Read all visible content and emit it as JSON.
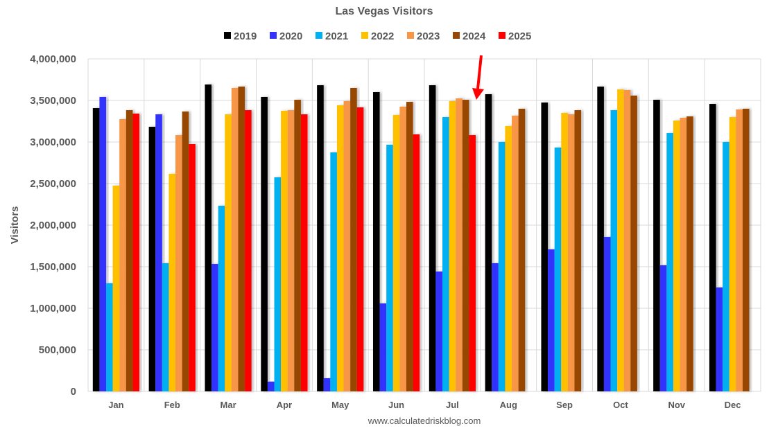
{
  "chart_data": {
    "type": "bar",
    "title": "Las Vegas Visitors",
    "xlabel": "",
    "ylabel": "Visitors",
    "footer": "www.calculatedriskblog.com",
    "ylim": [
      0,
      4000000
    ],
    "yticks": [
      0,
      500000,
      1000000,
      1500000,
      2000000,
      2500000,
      3000000,
      3500000,
      4000000
    ],
    "ytick_labels": [
      "0",
      "500,000",
      "1,000,000",
      "1,500,000",
      "2,000,000",
      "2,500,000",
      "3,000,000",
      "3,500,000",
      "4,000,000"
    ],
    "grid": true,
    "legend_position": "top",
    "categories": [
      "Jan",
      "Feb",
      "Mar",
      "Apr",
      "May",
      "Jun",
      "Jul",
      "Aug",
      "Sep",
      "Oct",
      "Nov",
      "Dec"
    ],
    "series": [
      {
        "name": "2019",
        "color": "#000000",
        "values": [
          3408000,
          3183000,
          3692000,
          3542000,
          3683000,
          3600000,
          3683000,
          3575000,
          3475000,
          3667000,
          3508000,
          3458000
        ]
      },
      {
        "name": "2020",
        "color": "#3333FF",
        "values": [
          3542000,
          3333000,
          1533000,
          117000,
          158000,
          1058000,
          1442000,
          1542000,
          1708000,
          1858000,
          1517000,
          1250000
        ]
      },
      {
        "name": "2021",
        "color": "#00B0F0",
        "values": [
          1300000,
          1542000,
          2233000,
          2575000,
          2875000,
          2967000,
          3300000,
          3000000,
          2933000,
          3383000,
          3108000,
          3000000
        ]
      },
      {
        "name": "2022",
        "color": "#FFC000",
        "values": [
          2475000,
          2617000,
          3333000,
          3375000,
          3442000,
          3325000,
          3492000,
          3192000,
          3350000,
          3633000,
          3258000,
          3300000
        ]
      },
      {
        "name": "2023",
        "color": "#F79646",
        "values": [
          3275000,
          3083000,
          3650000,
          3383000,
          3492000,
          3425000,
          3525000,
          3317000,
          3333000,
          3625000,
          3292000,
          3392000
        ]
      },
      {
        "name": "2024",
        "color": "#974706",
        "values": [
          3383000,
          3367000,
          3667000,
          3508000,
          3650000,
          3483000,
          3508000,
          3400000,
          3383000,
          3558000,
          3308000,
          3400000
        ]
      },
      {
        "name": "2025",
        "color": "#FF0000",
        "values": [
          3342000,
          2975000,
          3383000,
          3333000,
          3417000,
          3092000,
          3083000,
          null,
          null,
          null,
          null,
          null
        ]
      }
    ],
    "annotations": [
      {
        "type": "arrow",
        "color": "#FF0000",
        "points_to": "Jul"
      }
    ]
  }
}
